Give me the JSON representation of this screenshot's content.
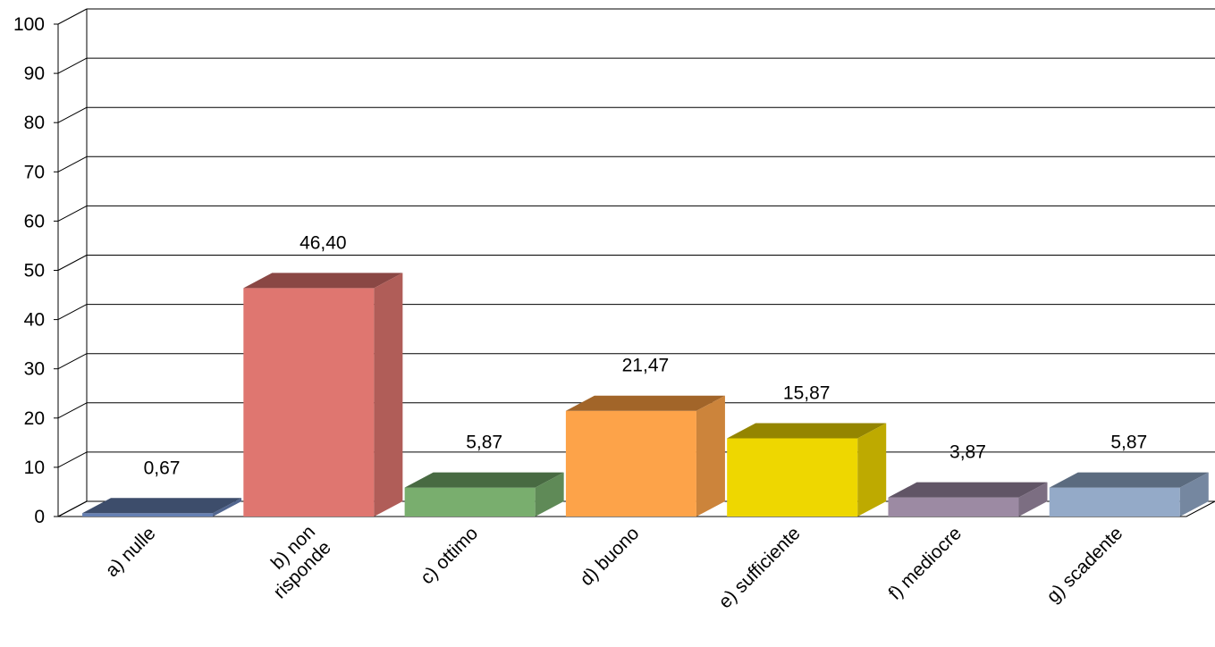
{
  "chart_data": {
    "type": "bar",
    "three_d": true,
    "title": "",
    "xlabel": "",
    "ylabel": "",
    "ylim": [
      0,
      100
    ],
    "ytick_step": 10,
    "ytick_labels": [
      "0",
      "10",
      "20",
      "30",
      "40",
      "50",
      "60",
      "70",
      "80",
      "90",
      "100"
    ],
    "grid": true,
    "legend": "none",
    "categories": [
      "a) nulle",
      "b) non risponde",
      "c) ottimo",
      "d) buono",
      "e) sufficiente",
      "f) mediocre",
      "g) scadente"
    ],
    "category_label_lines": [
      [
        "a) nulle"
      ],
      [
        "b) non",
        "risponde"
      ],
      [
        "c) ottimo"
      ],
      [
        "d) buono"
      ],
      [
        "e) sufficiente"
      ],
      [
        "f) mediocre"
      ],
      [
        "g) scadente"
      ]
    ],
    "values": [
      0.67,
      46.4,
      5.87,
      21.47,
      15.87,
      3.87,
      5.87
    ],
    "data_labels": [
      "0,67",
      "46,40",
      "5,87",
      "21,47",
      "15,87",
      "3,87",
      "5,87"
    ],
    "colors": [
      {
        "front": "#6680B3",
        "top": "#3D4D6B",
        "side": "#52668F"
      },
      {
        "front": "#DF7670",
        "top": "#8A4744",
        "side": "#B05D58"
      },
      {
        "front": "#79AE6E",
        "top": "#486A42",
        "side": "#5F8A57"
      },
      {
        "front": "#FDA349",
        "top": "#A26529",
        "side": "#CC843B"
      },
      {
        "front": "#EED700",
        "top": "#948500",
        "side": "#BEAA00"
      },
      {
        "front": "#9C8AA3",
        "top": "#615566",
        "side": "#7C6E82"
      },
      {
        "front": "#94AAC8",
        "top": "#5B6B7F",
        "side": "#7587A0"
      }
    ]
  }
}
